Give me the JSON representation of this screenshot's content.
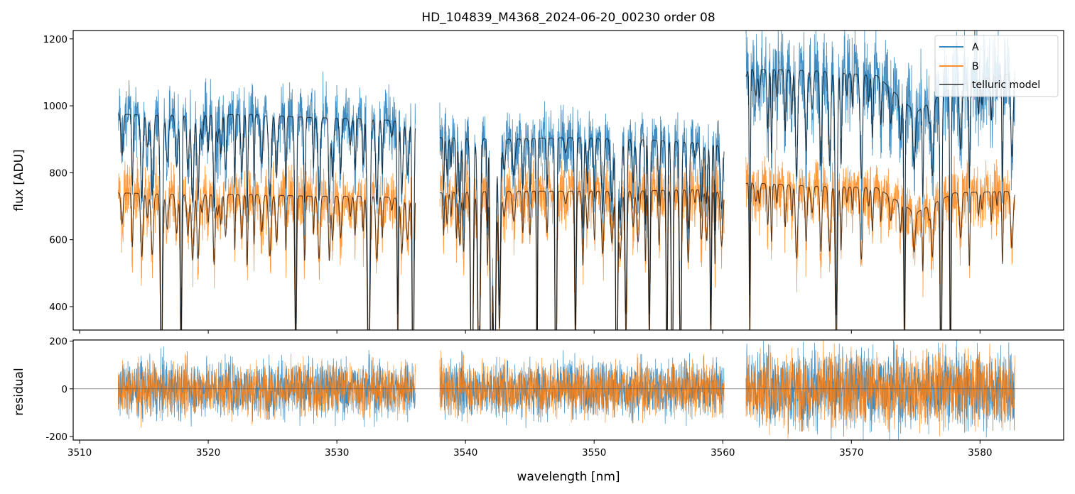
{
  "title": "HD_104839_M4368_2024-06-20_00230  order 08",
  "colors": {
    "A": "#1f77b4",
    "B": "#ff7f0e",
    "telluric": "#000000"
  },
  "chart_data": [
    {
      "type": "line",
      "panel": "top",
      "xlabel": "",
      "ylabel": "flux [ADU]",
      "xlim": [
        3509.5,
        3586.5
      ],
      "ylim": [
        330,
        1225
      ],
      "yticks": [
        "400",
        "600",
        "800",
        "1000",
        "1200"
      ],
      "grid": false,
      "legend": {
        "placement": "top-right",
        "entries": [
          "A",
          "B",
          "telluric model"
        ]
      },
      "segments": [
        {
          "x_range": [
            3513.0,
            3536.1
          ],
          "A_level": 975,
          "B_level": 740,
          "telluric_A": 975,
          "telluric_B": 735
        },
        {
          "x_range": [
            3538.0,
            3560.1
          ],
          "A_level": 905,
          "B_level": 740,
          "telluric_A": 895,
          "telluric_B": 745
        },
        {
          "x_range": [
            3561.8,
            3582.7
          ],
          "A_level": 1100,
          "B_level": 760,
          "telluric_A": 1090,
          "telluric_B": 755
        }
      ],
      "series": [
        {
          "name": "A",
          "x": [
            3513.0,
            3518.0,
            3523.0,
            3528.0,
            3533.0,
            3536.0,
            3538.0,
            3543.0,
            3548.0,
            3553.0,
            3558.0,
            3560.0,
            3562.0,
            3567.0,
            3572.0,
            3575.0,
            3578.0,
            3582.7
          ],
          "y": [
            975,
            970,
            975,
            965,
            960,
            950,
            905,
            900,
            905,
            900,
            890,
            880,
            1110,
            1105,
            1090,
            980,
            1060,
            1100
          ]
        },
        {
          "name": "B",
          "x": [
            3513.0,
            3518.0,
            3523.0,
            3528.0,
            3533.0,
            3536.0,
            3538.0,
            3543.0,
            3548.0,
            3553.0,
            3558.0,
            3560.0,
            3562.0,
            3567.0,
            3572.0,
            3575.0,
            3578.0,
            3582.7
          ],
          "y": [
            740,
            735,
            735,
            730,
            730,
            720,
            740,
            745,
            745,
            745,
            750,
            740,
            770,
            760,
            755,
            680,
            740,
            745
          ]
        }
      ]
    },
    {
      "type": "line",
      "panel": "bottom",
      "xlabel": "wavelength [nm]",
      "ylabel": "residual",
      "xlim": [
        3509.5,
        3586.5
      ],
      "ylim": [
        -215,
        205
      ],
      "yticks": [
        "-200",
        "0",
        "200"
      ],
      "xticks": [
        "3510",
        "3520",
        "3530",
        "3540",
        "3550",
        "3560",
        "3570",
        "3580"
      ],
      "grid": false,
      "zero_line": 0,
      "segments": [
        {
          "x_range": [
            3513.0,
            3536.1
          ],
          "A_spread": 110,
          "B_spread": 100
        },
        {
          "x_range": [
            3538.0,
            3560.1
          ],
          "A_spread": 110,
          "B_spread": 100
        },
        {
          "x_range": [
            3561.8,
            3582.7
          ],
          "A_spread": 150,
          "B_spread": 140
        }
      ]
    }
  ]
}
